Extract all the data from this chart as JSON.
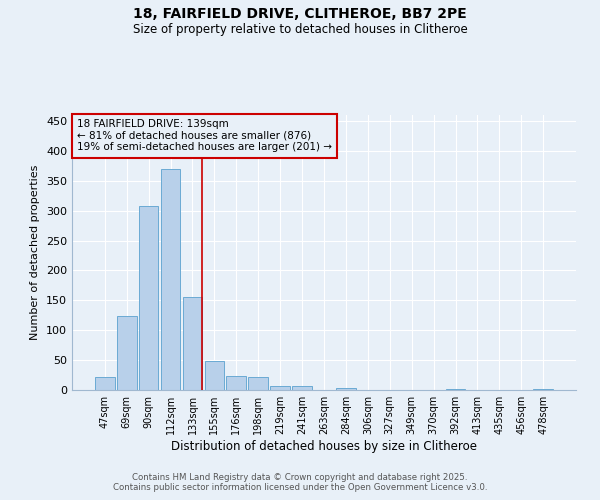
{
  "title1": "18, FAIRFIELD DRIVE, CLITHEROE, BB7 2PE",
  "title2": "Size of property relative to detached houses in Clitheroe",
  "xlabel": "Distribution of detached houses by size in Clitheroe",
  "ylabel": "Number of detached properties",
  "bins": [
    "47sqm",
    "69sqm",
    "90sqm",
    "112sqm",
    "133sqm",
    "155sqm",
    "176sqm",
    "198sqm",
    "219sqm",
    "241sqm",
    "263sqm",
    "284sqm",
    "306sqm",
    "327sqm",
    "349sqm",
    "370sqm",
    "392sqm",
    "413sqm",
    "435sqm",
    "456sqm",
    "478sqm"
  ],
  "values": [
    22,
    123,
    307,
    370,
    155,
    48,
    24,
    22,
    7,
    6,
    0,
    3,
    0,
    0,
    0,
    0,
    1,
    0,
    0,
    0,
    2
  ],
  "bar_color": "#b8d0ea",
  "bar_edge_color": "#6aaad4",
  "highlight_index": 4,
  "highlight_color": "#cc0000",
  "ylim": [
    0,
    460
  ],
  "yticks": [
    0,
    50,
    100,
    150,
    200,
    250,
    300,
    350,
    400,
    450
  ],
  "annotation_title": "18 FAIRFIELD DRIVE: 139sqm",
  "annotation_line1": "← 81% of detached houses are smaller (876)",
  "annotation_line2": "19% of semi-detached houses are larger (201) →",
  "annotation_box_color": "#cc0000",
  "background_color": "#e8f0f8",
  "grid_color": "#ffffff",
  "spine_color": "#a0b8d0",
  "footer1": "Contains HM Land Registry data © Crown copyright and database right 2025.",
  "footer2": "Contains public sector information licensed under the Open Government Licence v3.0."
}
